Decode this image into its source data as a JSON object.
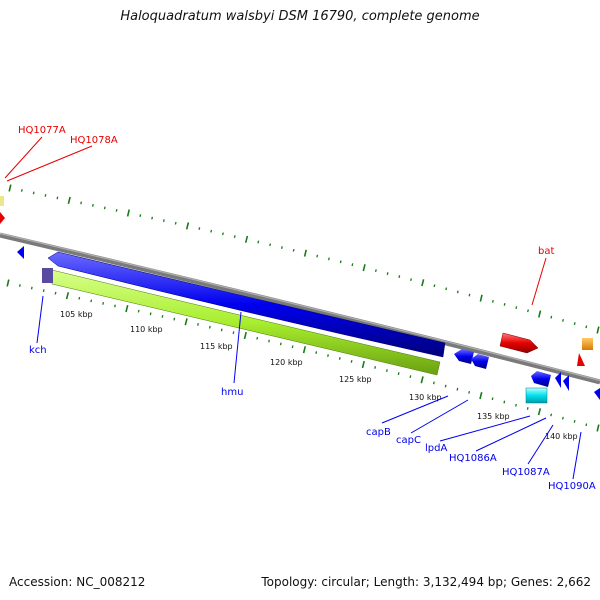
{
  "title": "Haloquadratum walsbyi DSM 16790, complete genome",
  "footer": {
    "accession": "Accession: NC_008212",
    "topology": "Topology: circular; Length: 3,132,494 bp; Genes: 2,662"
  },
  "colors": {
    "backbone": "#808080",
    "forward_strand_gene": "#e60000",
    "reverse_strand_gene": "#0000ee",
    "hmu_feature": "#a8ee2e",
    "cyan_gene": "#00e0ee",
    "orange_gene": "#ff9900",
    "yellow_gene": "#eee68a",
    "tick": "#1a7a1a"
  },
  "scale_labels": [
    "105 kbp",
    "110 kbp",
    "115 kbp",
    "120 kbp",
    "125 kbp",
    "130 kbp",
    "135 kbp",
    "140 kbp"
  ],
  "gene_labels": {
    "hq1077a": "HQ1077A",
    "hq1078a": "HQ1078A",
    "bat": "bat",
    "kch": "kch",
    "hmu": "hmu",
    "capb": "capB",
    "capc": "capC",
    "lpda": "lpdA",
    "hq1086a": "HQ1086A",
    "hq1087a": "HQ1087A",
    "hq1090a": "HQ1090A"
  }
}
